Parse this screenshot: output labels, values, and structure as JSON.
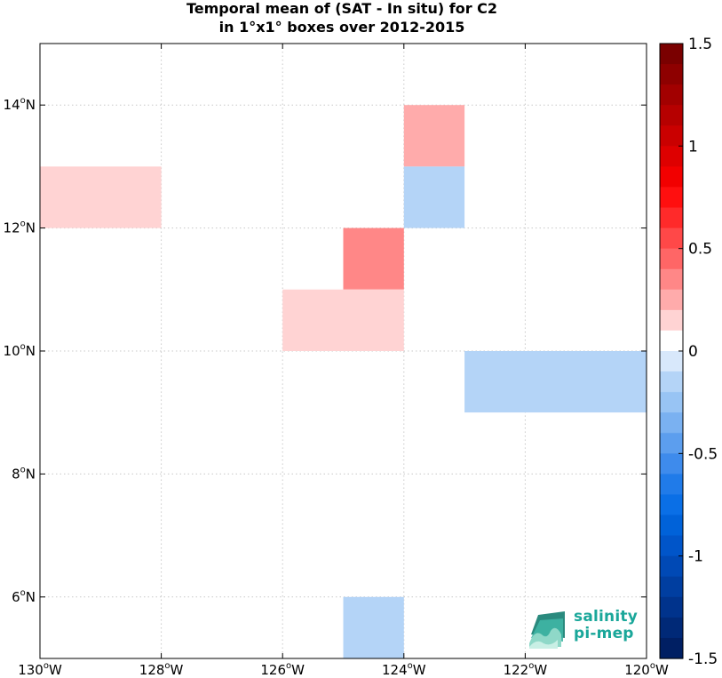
{
  "chart_data": {
    "type": "heatmap",
    "title": "Temporal mean of (SAT - In situ) for C2",
    "subtitle": "in 1°x1° boxes over 2012-2015",
    "xlim": [
      -130,
      -120
    ],
    "ylim": [
      5,
      15
    ],
    "x_ticks": [
      {
        "value": -130,
        "label": "130",
        "suffix": "W"
      },
      {
        "value": -128,
        "label": "128",
        "suffix": "W"
      },
      {
        "value": -126,
        "label": "126",
        "suffix": "W"
      },
      {
        "value": -124,
        "label": "124",
        "suffix": "W"
      },
      {
        "value": -122,
        "label": "122",
        "suffix": "W"
      },
      {
        "value": -120,
        "label": "120",
        "suffix": "W"
      }
    ],
    "y_ticks": [
      {
        "value": 6,
        "label": "6",
        "suffix": "N"
      },
      {
        "value": 8,
        "label": "8",
        "suffix": "N"
      },
      {
        "value": 10,
        "label": "10",
        "suffix": "N"
      },
      {
        "value": 12,
        "label": "12",
        "suffix": "N"
      },
      {
        "value": 14,
        "label": "14",
        "suffix": "N"
      }
    ],
    "grid": true,
    "cells": [
      {
        "lon_min": -130,
        "lon_max": -128,
        "lat_min": 12,
        "lat_max": 13,
        "value": 0.1
      },
      {
        "lon_min": -124,
        "lon_max": -123,
        "lat_min": 13,
        "lat_max": 14,
        "value": 0.25
      },
      {
        "lon_min": -124,
        "lon_max": -123,
        "lat_min": 12,
        "lat_max": 13,
        "value": -0.1
      },
      {
        "lon_min": -125,
        "lon_max": -124,
        "lat_min": 11,
        "lat_max": 12,
        "value": 0.35
      },
      {
        "lon_min": -126,
        "lon_max": -124,
        "lat_min": 10,
        "lat_max": 11,
        "value": 0.1
      },
      {
        "lon_min": -123,
        "lon_max": -120,
        "lat_min": 9,
        "lat_max": 10,
        "value": -0.1
      },
      {
        "lon_min": -125,
        "lon_max": -124,
        "lat_min": 5,
        "lat_max": 6,
        "value": -0.1
      }
    ],
    "colorbar": {
      "min": -1.5,
      "max": 1.5,
      "ticks": [
        {
          "value": 1.5,
          "label": "1.5"
        },
        {
          "value": 1,
          "label": "1"
        },
        {
          "value": 0.5,
          "label": "0.5"
        },
        {
          "value": 0,
          "label": "0"
        },
        {
          "value": -0.5,
          "label": "-0.5"
        },
        {
          "value": -1,
          "label": "-1"
        },
        {
          "value": -1.5,
          "label": "-1.5"
        }
      ],
      "colors_top_to_bottom": [
        "#7a0000",
        "#8e0000",
        "#a20000",
        "#b60000",
        "#ca0000",
        "#de0000",
        "#f20000",
        "#ff0f0f",
        "#ff2a2a",
        "#ff4848",
        "#ff6666",
        "#ff8787",
        "#ffabab",
        "#ffd3d3",
        "#ffffff",
        "#d8e8fb",
        "#b4d4f7",
        "#98c4f4",
        "#7ab1f1",
        "#5c9eee",
        "#3e8bec",
        "#207be9",
        "#0a6fe6",
        "#0062d9",
        "#0055c9",
        "#0049b5",
        "#003ea0",
        "#00338c",
        "#002977",
        "#001f63"
      ]
    }
  },
  "logo": {
    "line1": "salinity",
    "line2": "pi-mep",
    "color": "#1aa79a"
  }
}
